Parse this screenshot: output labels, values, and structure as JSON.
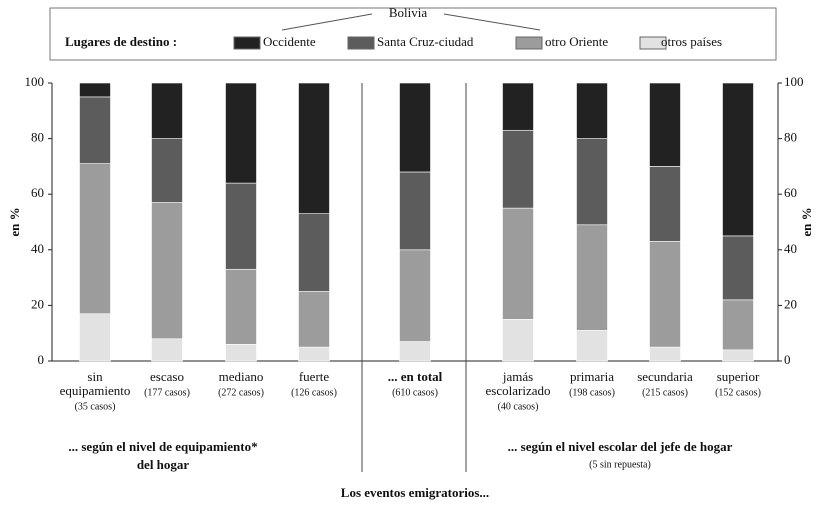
{
  "chart_data": {
    "type": "stacked_bar",
    "legend_title": "Lugares de destino :",
    "legend_group": "Bolivia",
    "categories": [
      [
        "sin",
        "equipamiento"
      ],
      [
        "escaso"
      ],
      [
        "mediano"
      ],
      [
        "fuerte"
      ],
      [
        "... en total"
      ],
      [
        "jamás",
        "escolarizado"
      ],
      [
        "primaria"
      ],
      [
        "secundaria"
      ],
      [
        "superior"
      ]
    ],
    "case_labels": [
      "(35 casos)",
      "(177 casos)",
      "(272 casos)",
      "(126 casos)",
      "(610 casos)",
      "(40 casos)",
      "(198 casos)",
      "(215 casos)",
      "(152 casos)"
    ],
    "series": [
      {
        "name": "otros países",
        "color": "#e2e2e2",
        "values": [
          17,
          8,
          6,
          5,
          7,
          15,
          11,
          5,
          4
        ]
      },
      {
        "name": "otro Oriente",
        "color": "#9c9c9c",
        "values": [
          54,
          49,
          27,
          20,
          33,
          40,
          38,
          38,
          18
        ]
      },
      {
        "name": "Santa Cruz-ciudad",
        "color": "#5c5c5c",
        "values": [
          24,
          23,
          31,
          28,
          28,
          28,
          31,
          27,
          23
        ]
      },
      {
        "name": "Occidente",
        "color": "#222222",
        "values": [
          5,
          20,
          36,
          47,
          32,
          17,
          20,
          30,
          55
        ]
      }
    ],
    "ylim": [
      0,
      100
    ],
    "yticks": [
      0,
      20,
      40,
      60,
      80,
      100
    ],
    "ylabel": "en %",
    "groups": [
      {
        "lines": [
          "... según el nivel de equipamiento*",
          "del hogar"
        ]
      },
      {
        "lines": [
          "... según el nivel escolar del jefe de hogar"
        ],
        "note": "(5 sin repuesta)"
      }
    ],
    "footer": "Los eventos emigratorios..."
  }
}
